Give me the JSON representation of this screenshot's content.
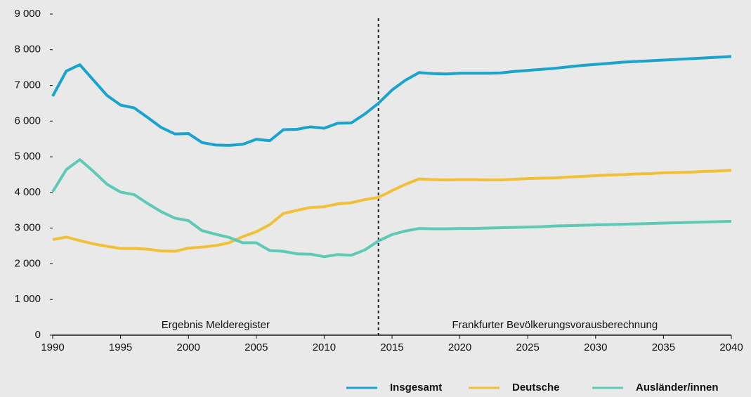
{
  "chart_data": {
    "type": "line",
    "x": [
      1990,
      1991,
      1992,
      1993,
      1994,
      1995,
      1996,
      1997,
      1998,
      1999,
      2000,
      2001,
      2002,
      2003,
      2004,
      2005,
      2006,
      2007,
      2008,
      2009,
      2010,
      2011,
      2012,
      2013,
      2014,
      2015,
      2016,
      2017,
      2018,
      2019,
      2020,
      2021,
      2022,
      2023,
      2024,
      2025,
      2026,
      2027,
      2028,
      2029,
      2030,
      2031,
      2032,
      2033,
      2034,
      2035,
      2036,
      2037,
      2038,
      2039,
      2040
    ],
    "series": [
      {
        "name": "Insgesamt",
        "color": "#1aa3cc",
        "values": [
          6700,
          7400,
          7580,
          7150,
          6720,
          6450,
          6370,
          6100,
          5820,
          5640,
          5650,
          5400,
          5330,
          5320,
          5350,
          5490,
          5450,
          5760,
          5770,
          5840,
          5800,
          5940,
          5950,
          6200,
          6500,
          6870,
          7150,
          7360,
          7330,
          7320,
          7340,
          7340,
          7340,
          7350,
          7390,
          7420,
          7450,
          7480,
          7520,
          7560,
          7590,
          7620,
          7650,
          7670,
          7690,
          7710,
          7730,
          7750,
          7770,
          7790,
          7810
        ]
      },
      {
        "name": "Deutsche",
        "color": "#f2c037",
        "values": [
          2680,
          2750,
          2650,
          2560,
          2490,
          2430,
          2430,
          2410,
          2360,
          2350,
          2440,
          2470,
          2510,
          2590,
          2760,
          2900,
          3100,
          3410,
          3500,
          3580,
          3600,
          3680,
          3710,
          3800,
          3860,
          4050,
          4230,
          4380,
          4360,
          4350,
          4360,
          4360,
          4350,
          4350,
          4370,
          4390,
          4400,
          4410,
          4430,
          4450,
          4470,
          4490,
          4500,
          4520,
          4530,
          4550,
          4560,
          4570,
          4590,
          4600,
          4620
        ]
      },
      {
        "name": "Ausländer/innen",
        "color": "#5ec9b5",
        "values": [
          4020,
          4640,
          4920,
          4590,
          4230,
          4010,
          3940,
          3690,
          3460,
          3280,
          3210,
          2930,
          2830,
          2740,
          2590,
          2590,
          2370,
          2350,
          2280,
          2270,
          2200,
          2260,
          2240,
          2390,
          2640,
          2820,
          2920,
          2990,
          2980,
          2980,
          2990,
          2990,
          3000,
          3010,
          3020,
          3030,
          3040,
          3060,
          3070,
          3080,
          3090,
          3100,
          3110,
          3120,
          3130,
          3140,
          3150,
          3160,
          3170,
          3180,
          3190
        ]
      }
    ],
    "xlim": [
      1990,
      2040
    ],
    "xticks": [
      1990,
      1995,
      2000,
      2005,
      2010,
      2015,
      2020,
      2025,
      2030,
      2035,
      2040
    ],
    "ylim": [
      0,
      9000
    ],
    "yticks": [
      0,
      {
        "value": 1000,
        "label": "1 000"
      },
      {
        "value": 2000,
        "label": "2 000"
      },
      {
        "value": 3000,
        "label": "3 000"
      },
      {
        "value": 4000,
        "label": "4 000"
      },
      {
        "value": 5000,
        "label": "5 000"
      },
      {
        "value": 6000,
        "label": "6 000"
      },
      {
        "value": 7000,
        "label": "7 000"
      },
      {
        "value": 8000,
        "label": "8 000"
      },
      {
        "value": 9000,
        "label": "9 000"
      }
    ],
    "grid": false,
    "legend": "bottom-right",
    "divider": 2014,
    "annotations": [
      "Ergebnis Melderegister",
      "Frankfurter Bevölkerungsvorausberechnung"
    ]
  }
}
